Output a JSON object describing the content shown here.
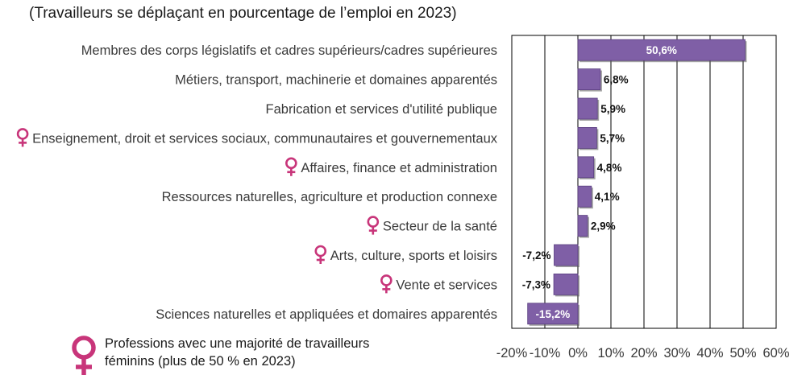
{
  "chart_data": {
    "type": "bar",
    "orientation": "horizontal",
    "title": "(Travailleurs se déplaçant en pourcentage de l’emploi en 2023)",
    "xlabel": "",
    "ylabel": "",
    "xlim": [
      -0.2,
      0.6
    ],
    "ticks": [
      "-20%",
      "-10%",
      "0%",
      "10%",
      "20%",
      "30%",
      "40%",
      "50%",
      "60%"
    ],
    "grid": true,
    "bar_color": "#7f5fa6",
    "female_marker_color": "#c8357a",
    "bars": [
      {
        "label": "Membres des corps législatifs et cadres supérieurs/cadres supérieures",
        "value": 0.506,
        "display": "50,6%",
        "female_majority": false
      },
      {
        "label": "Métiers, transport, machinerie et domaines apparentés",
        "value": 0.068,
        "display": "6,8%",
        "female_majority": false
      },
      {
        "label": "Fabrication et services d'utilité publique",
        "value": 0.059,
        "display": "5,9%",
        "female_majority": false
      },
      {
        "label": "Enseignement, droit et services sociaux, communautaires et gouvernementaux",
        "value": 0.057,
        "display": "5,7%",
        "female_majority": true
      },
      {
        "label": "Affaires, finance et administration",
        "value": 0.048,
        "display": "4,8%",
        "female_majority": true
      },
      {
        "label": "Ressources naturelles, agriculture et production connexe",
        "value": 0.041,
        "display": "4,1%",
        "female_majority": false
      },
      {
        "label": "Secteur de la santé",
        "value": 0.029,
        "display": "2,9%",
        "female_majority": true
      },
      {
        "label": "Arts, culture, sports et loisirs",
        "value": -0.072,
        "display": "-7,2%",
        "female_majority": true
      },
      {
        "label": "Vente et services",
        "value": -0.073,
        "display": "-7,3%",
        "female_majority": true
      },
      {
        "label": "Sciences naturelles et appliquées et domaires apparentés",
        "value": -0.152,
        "display": "-15,2%",
        "female_majority": false
      }
    ]
  },
  "legend": {
    "icon": "female-symbol-icon",
    "text": "Professions avec une majorité de travailleurs féminins (plus de 50 % en 2023)"
  }
}
